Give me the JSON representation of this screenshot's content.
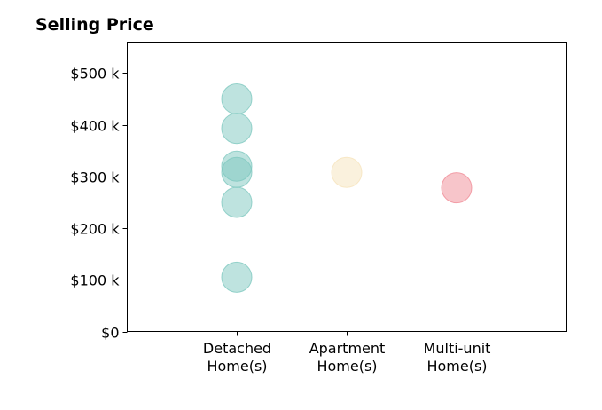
{
  "chart_data": {
    "type": "scatter",
    "title": "Selling Price",
    "xlabel": "",
    "ylabel": "",
    "categories": [
      [
        "Detached",
        "Home(s)"
      ],
      [
        "Apartment",
        "Home(s)"
      ],
      [
        "Multi-unit",
        "Home(s)"
      ]
    ],
    "series": [
      {
        "category_index": 0,
        "color": "#7ec8bf",
        "values": [
          450,
          393,
          320,
          308,
          250,
          105
        ]
      },
      {
        "category_index": 1,
        "color": "#f6e3bb",
        "values": [
          308
        ]
      },
      {
        "category_index": 2,
        "color": "#f08b96",
        "values": [
          278
        ]
      }
    ],
    "ylim": [
      0,
      560
    ],
    "yticks": [
      0,
      100,
      200,
      300,
      400,
      500
    ],
    "ytick_labels": [
      "$0",
      "$100 k",
      "$200 k",
      "$300 k",
      "$400 k",
      "$500 k"
    ],
    "grid": false,
    "legend": "none"
  }
}
